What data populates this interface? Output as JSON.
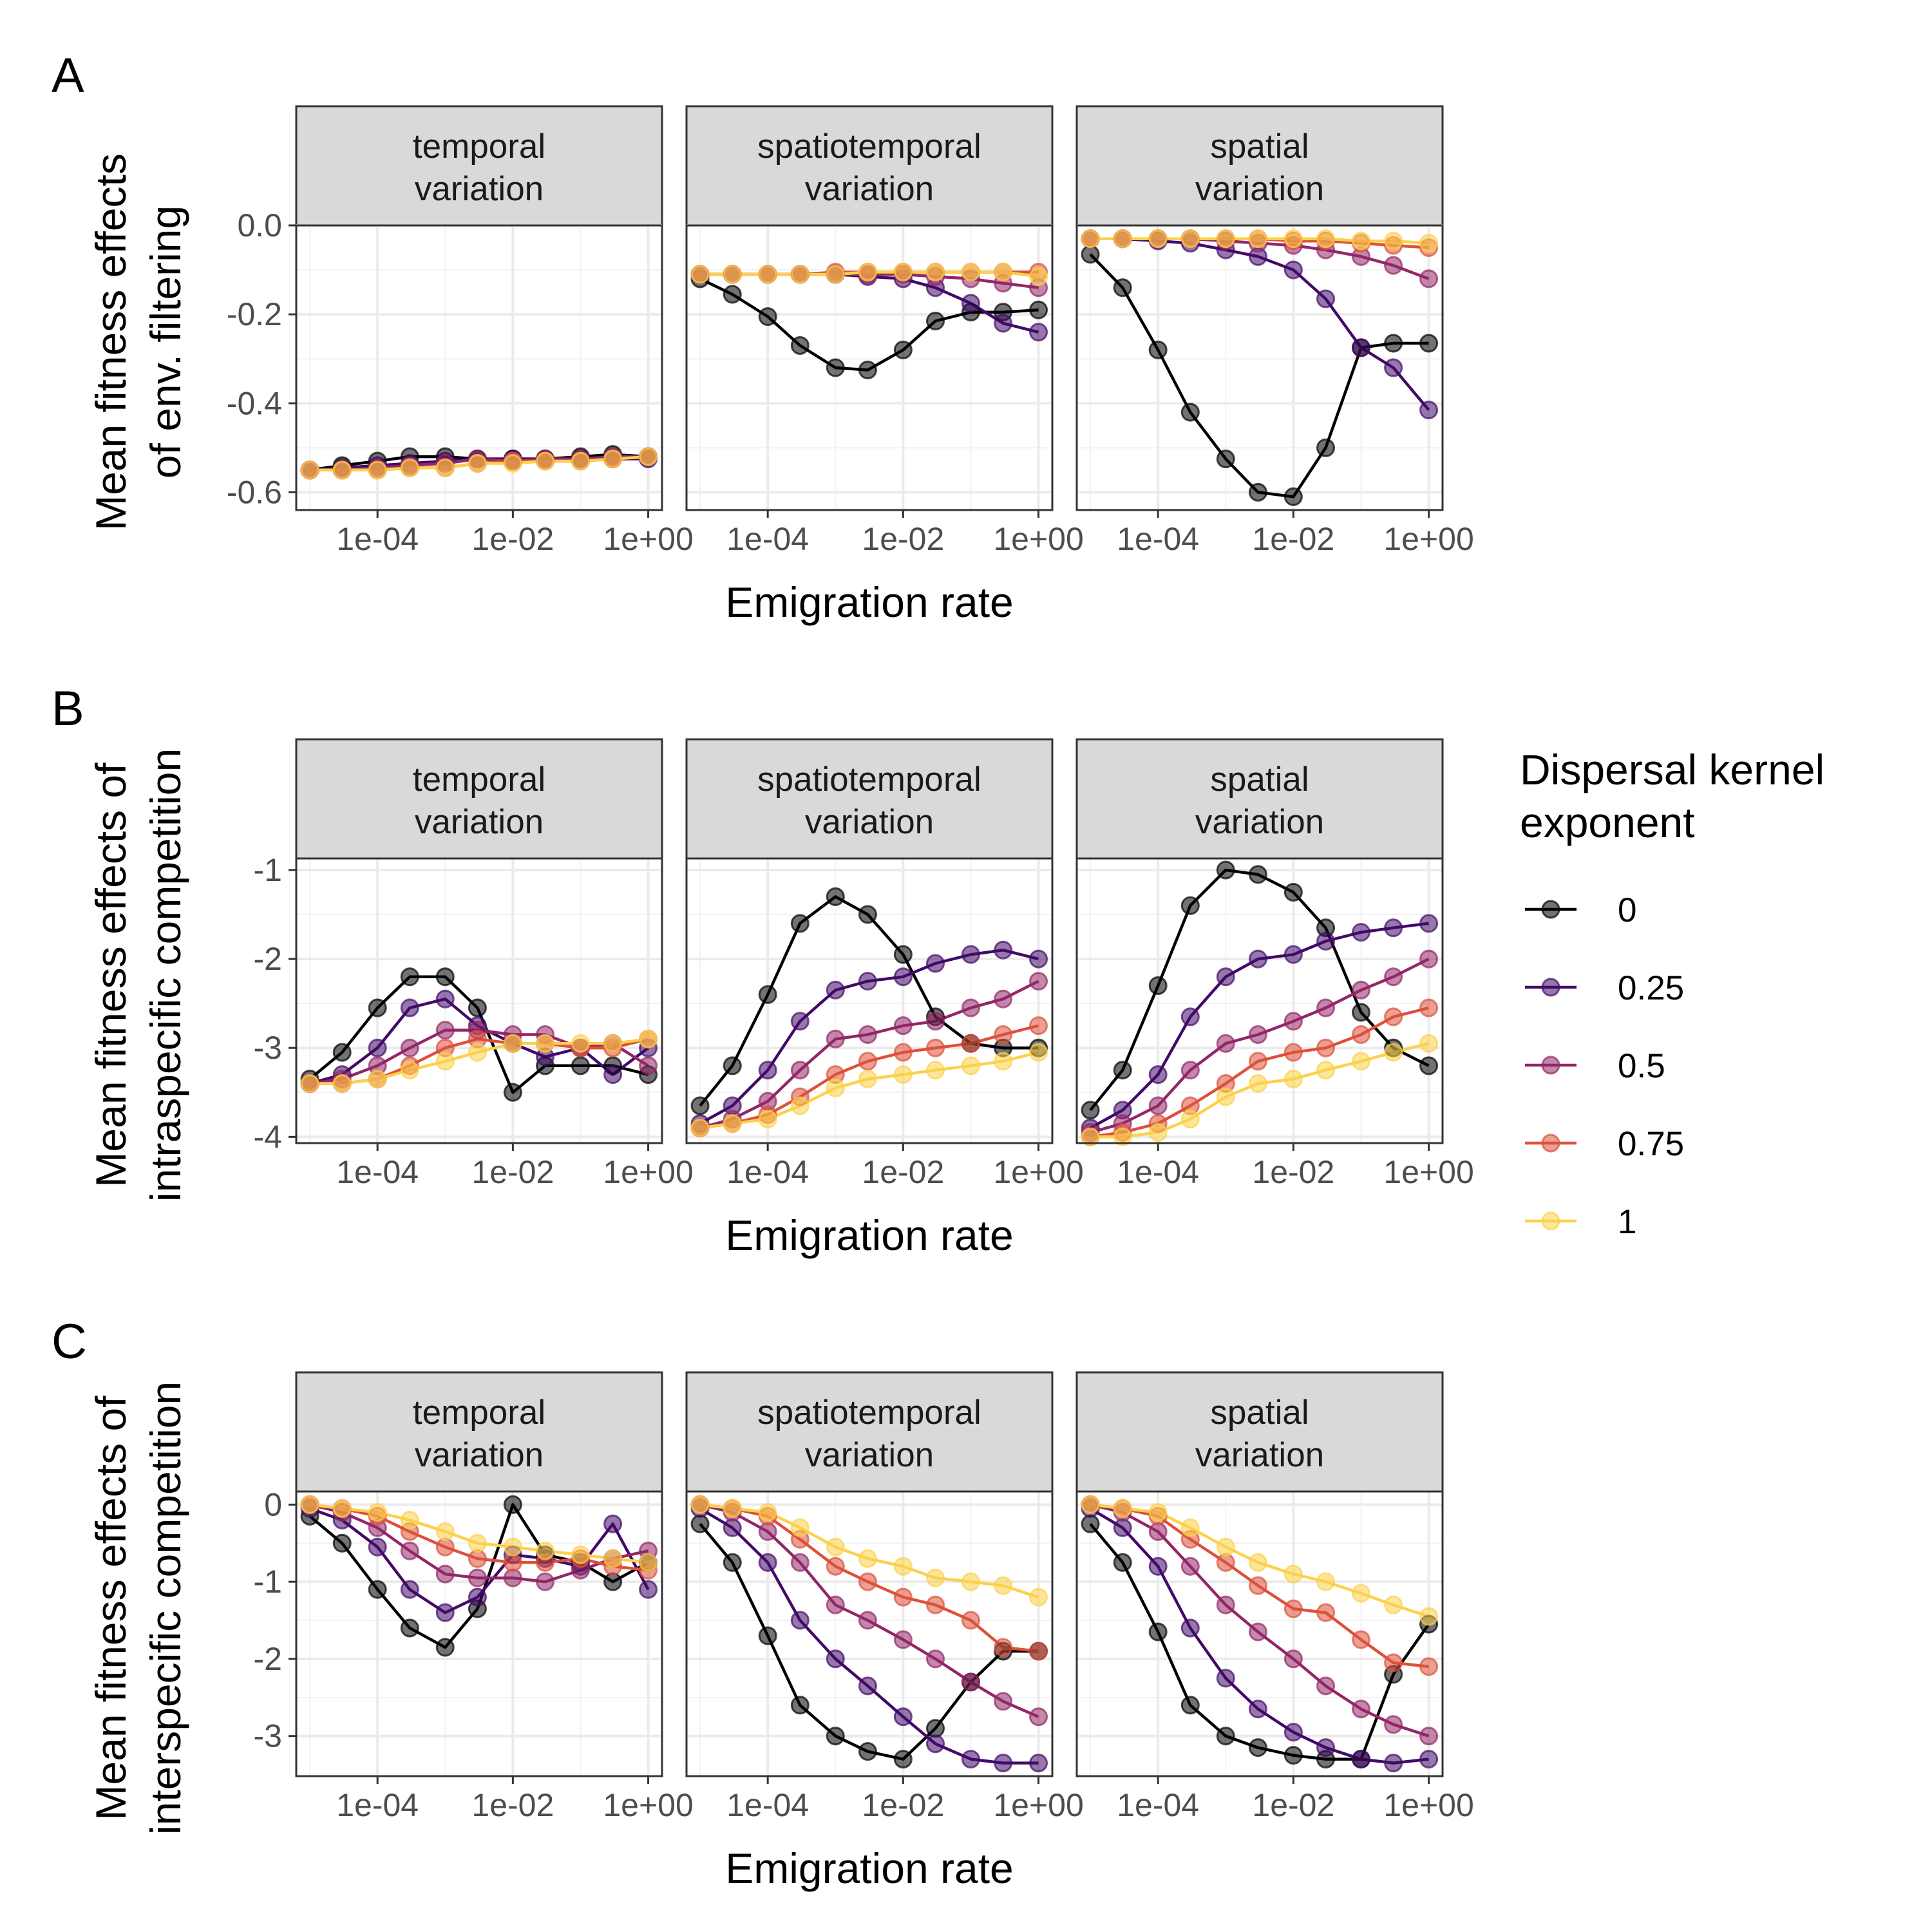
{
  "chart_data": {
    "type": "line",
    "colors": {
      "0": "#000004",
      "0.25": "#420a68",
      "0.5": "#932667",
      "0.75": "#dd513a",
      "1": "#fcd14b"
    },
    "x": [
      1e-05,
      3e-05,
      0.0001,
      0.0003,
      0.001,
      0.003,
      0.01,
      0.03,
      0.1,
      0.3,
      1
    ],
    "x_scale": "log10",
    "xlim": [
      6.3e-06,
      1.6
    ],
    "x_ticks": [
      0.0001,
      0.01,
      1
    ],
    "x_tick_labels": [
      "1e-04",
      "1e-02",
      "1e+00"
    ],
    "xlabel": "Emigration rate",
    "legend": {
      "title_line1": "Dispersal kernel",
      "title_line2": " exponent",
      "placement": "right",
      "entries": [
        "0",
        "0.25",
        "0.5",
        "0.75",
        "1"
      ]
    },
    "facets": [
      "temporal\nvariation",
      "spatiotemporal\nvariation",
      "spatial\nvariation"
    ],
    "panels": [
      {
        "letter": "A",
        "ylabel_line1": "Mean fitness effects",
        "ylabel_line2": "of env. filtering",
        "ylim": [
          -0.64,
          0.0
        ],
        "y_ticks": [
          0.0,
          -0.2,
          -0.4,
          -0.6
        ],
        "y_tick_labels": [
          "0.0",
          "-0.2",
          "-0.4",
          "-0.6"
        ],
        "facet_data": [
          {
            "series": [
              {
                "name": "0",
                "values": [
                  -0.55,
                  -0.54,
                  -0.53,
                  -0.52,
                  -0.52,
                  -0.525,
                  -0.525,
                  -0.525,
                  -0.52,
                  -0.515,
                  -0.52
                ]
              },
              {
                "name": "0.25",
                "values": [
                  -0.55,
                  -0.545,
                  -0.54,
                  -0.535,
                  -0.53,
                  -0.525,
                  -0.525,
                  -0.525,
                  -0.525,
                  -0.525,
                  -0.525
                ]
              },
              {
                "name": "0.5",
                "values": [
                  -0.55,
                  -0.55,
                  -0.545,
                  -0.54,
                  -0.535,
                  -0.525,
                  -0.53,
                  -0.525,
                  -0.525,
                  -0.52,
                  -0.52
                ]
              },
              {
                "name": "0.75",
                "values": [
                  -0.55,
                  -0.55,
                  -0.55,
                  -0.545,
                  -0.545,
                  -0.535,
                  -0.53,
                  -0.53,
                  -0.53,
                  -0.525,
                  -0.52
                ]
              },
              {
                "name": "1",
                "values": [
                  -0.55,
                  -0.55,
                  -0.55,
                  -0.545,
                  -0.545,
                  -0.535,
                  -0.535,
                  -0.53,
                  -0.53,
                  -0.525,
                  -0.52
                ]
              }
            ]
          },
          {
            "series": [
              {
                "name": "0",
                "values": [
                  -0.12,
                  -0.155,
                  -0.205,
                  -0.27,
                  -0.32,
                  -0.325,
                  -0.28,
                  -0.215,
                  -0.195,
                  -0.195,
                  -0.19
                ]
              },
              {
                "name": "0.25",
                "values": [
                  -0.11,
                  -0.11,
                  -0.11,
                  -0.11,
                  -0.11,
                  -0.115,
                  -0.12,
                  -0.14,
                  -0.175,
                  -0.22,
                  -0.24
                ]
              },
              {
                "name": "0.5",
                "values": [
                  -0.11,
                  -0.11,
                  -0.11,
                  -0.11,
                  -0.11,
                  -0.11,
                  -0.11,
                  -0.115,
                  -0.12,
                  -0.13,
                  -0.14
                ]
              },
              {
                "name": "0.75",
                "values": [
                  -0.11,
                  -0.11,
                  -0.11,
                  -0.11,
                  -0.105,
                  -0.105,
                  -0.105,
                  -0.105,
                  -0.105,
                  -0.105,
                  -0.105
                ]
              },
              {
                "name": "1",
                "values": [
                  -0.11,
                  -0.11,
                  -0.11,
                  -0.11,
                  -0.11,
                  -0.105,
                  -0.105,
                  -0.105,
                  -0.105,
                  -0.105,
                  -0.115
                ]
              }
            ]
          },
          {
            "series": [
              {
                "name": "0",
                "values": [
                  -0.065,
                  -0.14,
                  -0.28,
                  -0.42,
                  -0.525,
                  -0.6,
                  -0.61,
                  -0.5,
                  -0.275,
                  -0.265,
                  -0.265
                ]
              },
              {
                "name": "0.25",
                "values": [
                  -0.03,
                  -0.03,
                  -0.035,
                  -0.04,
                  -0.055,
                  -0.07,
                  -0.1,
                  -0.165,
                  -0.275,
                  -0.32,
                  -0.415
                ]
              },
              {
                "name": "0.5",
                "values": [
                  -0.03,
                  -0.03,
                  -0.03,
                  -0.03,
                  -0.035,
                  -0.04,
                  -0.045,
                  -0.055,
                  -0.07,
                  -0.09,
                  -0.12
                ]
              },
              {
                "name": "0.75",
                "values": [
                  -0.03,
                  -0.03,
                  -0.03,
                  -0.03,
                  -0.03,
                  -0.03,
                  -0.035,
                  -0.035,
                  -0.04,
                  -0.045,
                  -0.05
                ]
              },
              {
                "name": "1",
                "values": [
                  -0.03,
                  -0.03,
                  -0.03,
                  -0.03,
                  -0.03,
                  -0.03,
                  -0.03,
                  -0.03,
                  -0.035,
                  -0.035,
                  -0.04
                ]
              }
            ]
          }
        ]
      },
      {
        "letter": "B",
        "ylabel_line1": "Mean fitness effects of",
        "ylabel_line2": "intraspecific competition",
        "ylim": [
          -4.07,
          -0.87
        ],
        "y_ticks": [
          -1,
          -2,
          -3,
          -4
        ],
        "y_tick_labels": [
          "-1",
          "-2",
          "-3",
          "-4"
        ],
        "facet_data": [
          {
            "series": [
              {
                "name": "0",
                "values": [
                  -3.35,
                  -3.05,
                  -2.55,
                  -2.2,
                  -2.2,
                  -2.55,
                  -3.5,
                  -3.2,
                  -3.2,
                  -3.2,
                  -3.3
                ]
              },
              {
                "name": "0.25",
                "values": [
                  -3.4,
                  -3.3,
                  -3.0,
                  -2.55,
                  -2.45,
                  -2.75,
                  -2.95,
                  -3.1,
                  -3.0,
                  -3.3,
                  -3.0
                ]
              },
              {
                "name": "0.5",
                "values": [
                  -3.4,
                  -3.35,
                  -3.2,
                  -3.0,
                  -2.8,
                  -2.8,
                  -2.85,
                  -2.85,
                  -3.0,
                  -2.95,
                  -3.2
                ]
              },
              {
                "name": "0.75",
                "values": [
                  -3.4,
                  -3.4,
                  -3.35,
                  -3.2,
                  -3.0,
                  -2.9,
                  -2.95,
                  -2.95,
                  -3.0,
                  -3.0,
                  -2.9
                ]
              },
              {
                "name": "1",
                "values": [
                  -3.4,
                  -3.4,
                  -3.35,
                  -3.25,
                  -3.15,
                  -3.05,
                  -2.95,
                  -2.95,
                  -2.95,
                  -2.95,
                  -2.9
                ]
              }
            ]
          },
          {
            "series": [
              {
                "name": "0",
                "values": [
                  -3.65,
                  -3.2,
                  -2.4,
                  -1.6,
                  -1.3,
                  -1.5,
                  -1.95,
                  -2.65,
                  -2.95,
                  -3.0,
                  -3.0
                ]
              },
              {
                "name": "0.25",
                "values": [
                  -3.85,
                  -3.65,
                  -3.25,
                  -2.7,
                  -2.35,
                  -2.25,
                  -2.2,
                  -2.05,
                  -1.95,
                  -1.9,
                  -2.0
                ]
              },
              {
                "name": "0.5",
                "values": [
                  -3.9,
                  -3.8,
                  -3.6,
                  -3.25,
                  -2.9,
                  -2.85,
                  -2.75,
                  -2.7,
                  -2.55,
                  -2.45,
                  -2.25
                ]
              },
              {
                "name": "0.75",
                "values": [
                  -3.9,
                  -3.85,
                  -3.75,
                  -3.55,
                  -3.3,
                  -3.15,
                  -3.05,
                  -3.0,
                  -2.95,
                  -2.85,
                  -2.75
                ]
              },
              {
                "name": "1",
                "values": [
                  -3.9,
                  -3.85,
                  -3.8,
                  -3.65,
                  -3.45,
                  -3.35,
                  -3.3,
                  -3.25,
                  -3.2,
                  -3.15,
                  -3.05
                ]
              }
            ]
          },
          {
            "series": [
              {
                "name": "0",
                "values": [
                  -3.7,
                  -3.25,
                  -2.3,
                  -1.4,
                  -1.0,
                  -1.05,
                  -1.25,
                  -1.65,
                  -2.6,
                  -3.0,
                  -3.2
                ]
              },
              {
                "name": "0.25",
                "values": [
                  -3.9,
                  -3.7,
                  -3.3,
                  -2.65,
                  -2.2,
                  -2.0,
                  -1.95,
                  -1.8,
                  -1.7,
                  -1.65,
                  -1.6
                ]
              },
              {
                "name": "0.5",
                "values": [
                  -3.95,
                  -3.85,
                  -3.65,
                  -3.25,
                  -2.95,
                  -2.85,
                  -2.7,
                  -2.55,
                  -2.35,
                  -2.2,
                  -2.0
                ]
              },
              {
                "name": "0.75",
                "values": [
                  -4.0,
                  -3.95,
                  -3.85,
                  -3.65,
                  -3.4,
                  -3.15,
                  -3.05,
                  -3.0,
                  -2.85,
                  -2.65,
                  -2.55
                ]
              },
              {
                "name": "1",
                "values": [
                  -4.0,
                  -4.0,
                  -3.95,
                  -3.8,
                  -3.55,
                  -3.4,
                  -3.35,
                  -3.25,
                  -3.15,
                  -3.05,
                  -2.95
                ]
              }
            ]
          }
        ]
      },
      {
        "letter": "C",
        "ylabel_line1": "Mean fitness effects of",
        "ylabel_line2": "interspecific competition",
        "ylim": [
          -3.52,
          0.17
        ],
        "y_ticks": [
          0,
          -1,
          -2,
          -3
        ],
        "y_tick_labels": [
          "0",
          "-1",
          "-2",
          "-3"
        ],
        "facet_data": [
          {
            "series": [
              {
                "name": "0",
                "values": [
                  -0.15,
                  -0.5,
                  -1.1,
                  -1.6,
                  -1.85,
                  -1.35,
                  0.0,
                  -0.65,
                  -0.75,
                  -1.0,
                  -0.75
                ]
              },
              {
                "name": "0.25",
                "values": [
                  -0.05,
                  -0.2,
                  -0.55,
                  -1.1,
                  -1.4,
                  -1.2,
                  -0.65,
                  -0.7,
                  -0.8,
                  -0.25,
                  -1.1
                ]
              },
              {
                "name": "0.5",
                "values": [
                  -0.0,
                  -0.1,
                  -0.3,
                  -0.6,
                  -0.9,
                  -0.95,
                  -0.95,
                  -1.0,
                  -0.85,
                  -0.7,
                  -0.6
                ]
              },
              {
                "name": "0.75",
                "values": [
                  -0.0,
                  -0.05,
                  -0.15,
                  -0.35,
                  -0.55,
                  -0.7,
                  -0.75,
                  -0.75,
                  -0.7,
                  -0.8,
                  -0.85
                ]
              },
              {
                "name": "1",
                "values": [
                  -0.0,
                  -0.05,
                  -0.1,
                  -0.2,
                  -0.35,
                  -0.5,
                  -0.55,
                  -0.6,
                  -0.65,
                  -0.7,
                  -0.75
                ]
              }
            ]
          },
          {
            "series": [
              {
                "name": "0",
                "values": [
                  -0.25,
                  -0.75,
                  -1.7,
                  -2.6,
                  -3.0,
                  -3.2,
                  -3.3,
                  -2.9,
                  -2.3,
                  -1.9,
                  -1.9
                ]
              },
              {
                "name": "0.25",
                "values": [
                  -0.05,
                  -0.3,
                  -0.75,
                  -1.5,
                  -2.0,
                  -2.35,
                  -2.75,
                  -3.1,
                  -3.3,
                  -3.35,
                  -3.35
                ]
              },
              {
                "name": "0.5",
                "values": [
                  -0.0,
                  -0.1,
                  -0.35,
                  -0.75,
                  -1.3,
                  -1.5,
                  -1.75,
                  -2.0,
                  -2.3,
                  -2.55,
                  -2.75
                ]
              },
              {
                "name": "0.75",
                "values": [
                  -0.0,
                  -0.05,
                  -0.15,
                  -0.45,
                  -0.8,
                  -1.0,
                  -1.2,
                  -1.3,
                  -1.5,
                  -1.85,
                  -1.9
                ]
              },
              {
                "name": "1",
                "values": [
                  -0.0,
                  -0.05,
                  -0.1,
                  -0.3,
                  -0.55,
                  -0.7,
                  -0.8,
                  -0.95,
                  -1.0,
                  -1.05,
                  -1.2
                ]
              }
            ]
          },
          {
            "series": [
              {
                "name": "0",
                "values": [
                  -0.25,
                  -0.75,
                  -1.65,
                  -2.6,
                  -3.0,
                  -3.15,
                  -3.25,
                  -3.3,
                  -3.3,
                  -2.2,
                  -1.55
                ]
              },
              {
                "name": "0.25",
                "values": [
                  -0.05,
                  -0.3,
                  -0.8,
                  -1.6,
                  -2.25,
                  -2.65,
                  -2.95,
                  -3.15,
                  -3.3,
                  -3.35,
                  -3.3
                ]
              },
              {
                "name": "0.5",
                "values": [
                  -0.0,
                  -0.1,
                  -0.35,
                  -0.8,
                  -1.3,
                  -1.65,
                  -2.0,
                  -2.35,
                  -2.65,
                  -2.85,
                  -3.0
                ]
              },
              {
                "name": "0.75",
                "values": [
                  -0.0,
                  -0.05,
                  -0.15,
                  -0.45,
                  -0.75,
                  -1.05,
                  -1.35,
                  -1.4,
                  -1.75,
                  -2.05,
                  -2.1
                ]
              },
              {
                "name": "1",
                "values": [
                  -0.0,
                  -0.05,
                  -0.1,
                  -0.3,
                  -0.55,
                  -0.75,
                  -0.9,
                  -1.0,
                  -1.15,
                  -1.3,
                  -1.45
                ]
              }
            ]
          }
        ]
      }
    ]
  }
}
